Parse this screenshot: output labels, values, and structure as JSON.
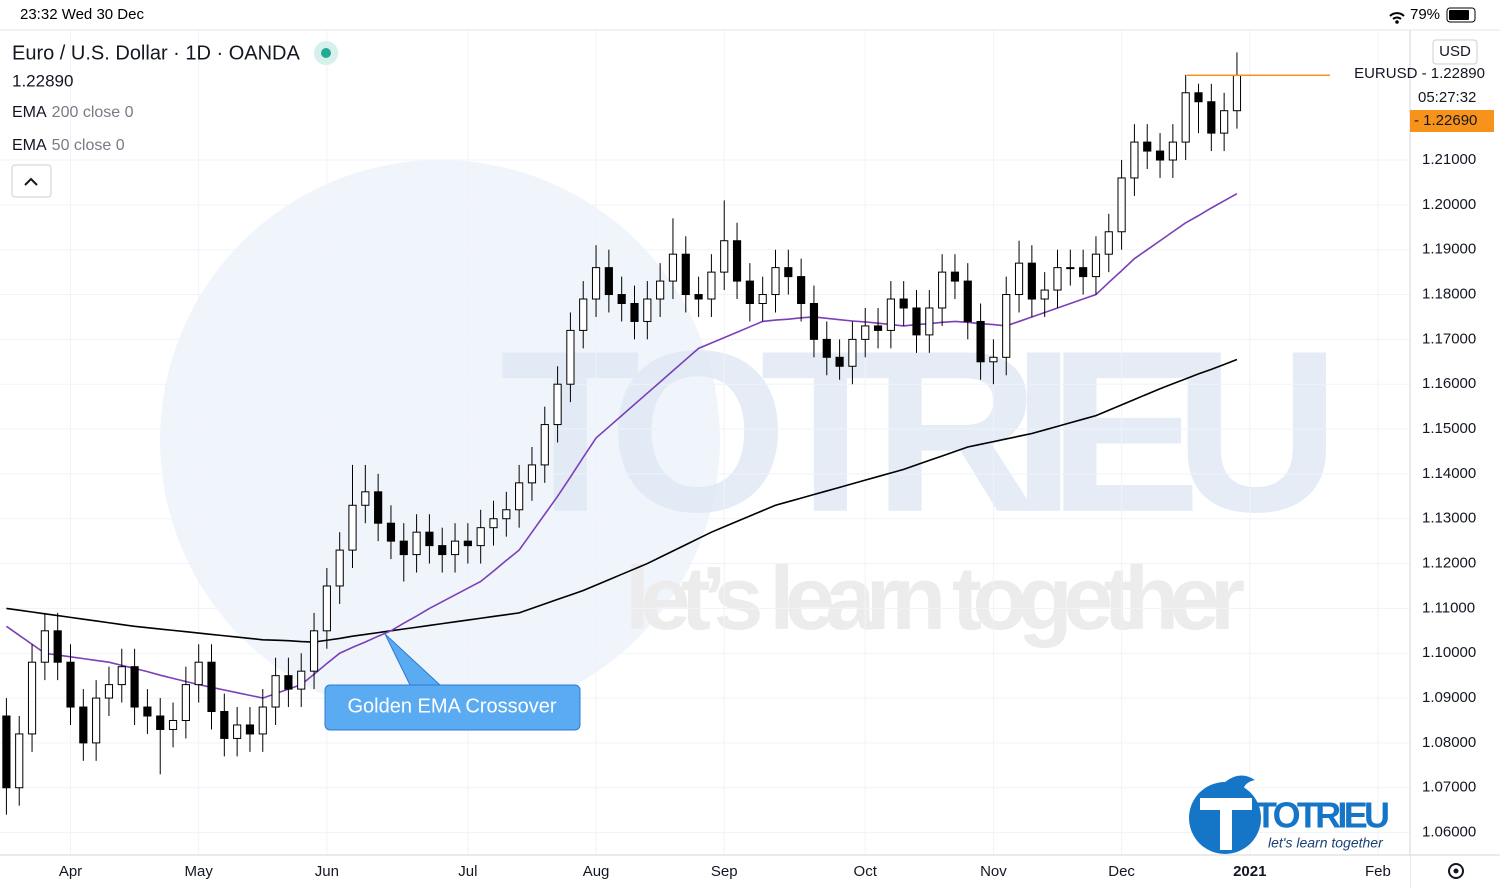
{
  "status_bar": {
    "time": "23:32  Wed 30 Dec",
    "battery": "79%"
  },
  "header": {
    "symbol": "Euro / U.S. Dollar · 1D · OANDA",
    "last_price": "1.22890"
  },
  "price_scale": {
    "currency": "USD",
    "symbol_label": "EURUSD - 1.22890",
    "countdown": "05:27:32",
    "marker_label": "- 1.22690"
  },
  "annotation": "Golden EMA Crossover",
  "watermark": {
    "brand": "TOTRIEU",
    "slogan": "let’s learn together"
  },
  "logo": {
    "brand": "TOTRIEU",
    "slogan": "let's learn together"
  },
  "chart_data": {
    "type": "candlestick",
    "categories": [
      null,
      null,
      null,
      null,
      null,
      "Apr",
      null,
      null,
      null,
      null,
      null,
      null,
      null,
      null,
      null,
      "May",
      null,
      null,
      null,
      null,
      null,
      null,
      null,
      null,
      null,
      "Jun",
      null,
      null,
      null,
      null,
      null,
      null,
      null,
      null,
      null,
      null,
      "Jul",
      null,
      null,
      null,
      null,
      null,
      null,
      null,
      null,
      null,
      "Aug",
      null,
      null,
      null,
      null,
      null,
      null,
      null,
      null,
      null,
      "Sep",
      null,
      null,
      null,
      null,
      null,
      null,
      null,
      null,
      null,
      null,
      "Oct",
      null,
      null,
      null,
      null,
      null,
      null,
      null,
      null,
      null,
      "Nov",
      null,
      null,
      null,
      null,
      null,
      null,
      null,
      null,
      null,
      "Dec",
      null,
      null,
      null,
      null,
      null,
      null,
      null,
      null,
      null,
      "2021",
      null,
      null,
      null,
      null,
      null,
      null,
      null,
      null,
      null,
      "Feb",
      null,
      null
    ],
    "open": [
      1.086,
      1.07,
      1.082,
      1.098,
      1.105,
      1.098,
      1.088,
      1.08,
      1.09,
      1.093,
      1.097,
      1.088,
      1.086,
      1.083,
      1.085,
      1.093,
      1.098,
      1.087,
      1.081,
      1.084,
      1.082,
      1.088,
      1.095,
      1.092,
      1.096,
      1.105,
      1.115,
      1.123,
      1.133,
      1.136,
      1.129,
      1.125,
      1.122,
      1.127,
      1.124,
      1.122,
      1.125,
      1.124,
      1.128,
      1.13,
      1.132,
      1.138,
      1.142,
      1.151,
      1.16,
      1.172,
      1.179,
      1.186,
      1.18,
      1.178,
      1.174,
      1.179,
      1.183,
      1.189,
      1.18,
      1.179,
      1.185,
      1.192,
      1.183,
      1.178,
      1.18,
      1.186,
      1.184,
      1.178,
      1.17,
      1.166,
      1.164,
      1.17,
      1.173,
      1.172,
      1.179,
      1.177,
      1.171,
      1.177,
      1.185,
      1.183,
      1.174,
      1.165,
      1.166,
      1.18,
      1.187,
      1.179,
      1.181,
      1.186,
      1.186,
      1.184,
      1.189,
      1.194,
      1.206,
      1.214,
      1.212,
      1.21,
      1.214,
      1.225,
      1.223,
      1.216,
      1.221,
      null,
      null,
      null,
      null,
      null,
      null,
      null,
      null,
      null,
      null,
      null,
      null,
      null
    ],
    "high": [
      1.09,
      1.086,
      1.102,
      1.109,
      1.109,
      1.102,
      1.092,
      1.094,
      1.097,
      1.101,
      1.101,
      1.092,
      1.09,
      1.089,
      1.097,
      1.102,
      1.102,
      1.091,
      1.088,
      1.088,
      1.092,
      1.099,
      1.099,
      1.1,
      1.109,
      1.119,
      1.127,
      1.142,
      1.142,
      1.14,
      1.133,
      1.129,
      1.131,
      1.131,
      1.128,
      1.129,
      1.129,
      1.132,
      1.134,
      1.136,
      1.142,
      1.146,
      1.155,
      1.164,
      1.176,
      1.183,
      1.191,
      1.19,
      1.184,
      1.182,
      1.183,
      1.187,
      1.197,
      1.193,
      1.184,
      1.189,
      1.201,
      1.196,
      1.187,
      1.184,
      1.19,
      1.19,
      1.188,
      1.182,
      1.174,
      1.17,
      1.174,
      1.177,
      1.177,
      1.183,
      1.183,
      1.181,
      1.181,
      1.189,
      1.189,
      1.187,
      1.178,
      1.17,
      1.184,
      1.192,
      1.191,
      1.185,
      1.19,
      1.19,
      1.19,
      1.193,
      1.198,
      1.21,
      1.218,
      1.218,
      1.216,
      1.218,
      1.229,
      1.227,
      1.227,
      1.225,
      1.234,
      null,
      null,
      null,
      null,
      null,
      null,
      null,
      null,
      null,
      null,
      null,
      null,
      null
    ],
    "low": [
      1.064,
      1.066,
      1.078,
      1.094,
      1.094,
      1.084,
      1.076,
      1.076,
      1.086,
      1.089,
      1.084,
      1.082,
      1.073,
      1.079,
      1.081,
      1.089,
      1.083,
      1.077,
      1.077,
      1.078,
      1.078,
      1.084,
      1.088,
      1.088,
      1.092,
      1.101,
      1.111,
      1.119,
      1.129,
      1.125,
      1.121,
      1.116,
      1.118,
      1.12,
      1.118,
      1.118,
      1.12,
      1.12,
      1.124,
      1.126,
      1.128,
      1.134,
      1.138,
      1.147,
      1.156,
      1.168,
      1.175,
      1.176,
      1.174,
      1.17,
      1.17,
      1.175,
      1.179,
      1.176,
      1.175,
      1.175,
      1.181,
      1.179,
      1.174,
      1.174,
      1.176,
      1.18,
      1.174,
      1.166,
      1.162,
      1.161,
      1.16,
      1.166,
      1.168,
      1.168,
      1.173,
      1.167,
      1.167,
      1.173,
      1.179,
      1.17,
      1.161,
      1.16,
      1.162,
      1.176,
      1.175,
      1.175,
      1.177,
      1.182,
      1.18,
      1.18,
      1.185,
      1.19,
      1.202,
      1.208,
      1.206,
      1.206,
      1.21,
      1.216,
      1.212,
      1.212,
      1.217,
      null,
      null,
      null,
      null,
      null,
      null,
      null,
      null,
      null,
      null,
      null,
      null,
      null
    ],
    "close": [
      1.07,
      1.082,
      1.098,
      1.105,
      1.098,
      1.088,
      1.08,
      1.09,
      1.093,
      1.097,
      1.088,
      1.086,
      1.083,
      1.085,
      1.093,
      1.098,
      1.087,
      1.081,
      1.084,
      1.082,
      1.088,
      1.095,
      1.092,
      1.096,
      1.105,
      1.115,
      1.123,
      1.133,
      1.136,
      1.129,
      1.125,
      1.122,
      1.127,
      1.124,
      1.122,
      1.125,
      1.124,
      1.128,
      1.13,
      1.132,
      1.138,
      1.142,
      1.151,
      1.16,
      1.172,
      1.179,
      1.186,
      1.18,
      1.178,
      1.174,
      1.179,
      1.183,
      1.189,
      1.18,
      1.179,
      1.185,
      1.192,
      1.183,
      1.178,
      1.18,
      1.186,
      1.184,
      1.178,
      1.17,
      1.166,
      1.164,
      1.17,
      1.173,
      1.172,
      1.179,
      1.177,
      1.171,
      1.177,
      1.185,
      1.183,
      1.174,
      1.165,
      1.166,
      1.18,
      1.187,
      1.179,
      1.181,
      1.186,
      1.186,
      1.184,
      1.189,
      1.194,
      1.206,
      1.214,
      1.212,
      1.21,
      1.214,
      1.225,
      1.223,
      1.216,
      1.221,
      1.2289,
      null,
      null,
      null,
      null,
      null,
      null,
      null,
      null,
      null,
      null,
      null,
      null,
      null
    ],
    "series": [
      {
        "name": "EMA",
        "params": "200 close 0",
        "color": "#000000",
        "values": [
          1.11,
          1.1096,
          1.1092,
          1.1088,
          1.1084,
          1.108,
          1.1076,
          1.1072,
          1.1068,
          1.1064,
          1.106,
          1.1057,
          1.1054,
          1.1051,
          1.1048,
          1.1045,
          1.1042,
          1.1039,
          1.1036,
          1.1033,
          1.103,
          1.1029,
          1.1028,
          1.1026,
          1.1025,
          1.1029,
          1.1033,
          1.1038,
          1.1042,
          1.1046,
          1.105,
          1.1054,
          1.1058,
          1.1062,
          1.1066,
          1.107,
          1.1074,
          1.1078,
          1.1082,
          1.1086,
          1.109,
          1.11,
          1.111,
          1.112,
          1.113,
          1.114,
          1.1152,
          1.1164,
          1.1176,
          1.1188,
          1.12,
          1.1214,
          1.1228,
          1.1242,
          1.1256,
          1.127,
          1.1282,
          1.1294,
          1.1306,
          1.1318,
          1.133,
          1.1338,
          1.1346,
          1.1354,
          1.1362,
          1.137,
          1.1378,
          1.1386,
          1.1394,
          1.1402,
          1.141,
          1.142,
          1.143,
          1.144,
          1.145,
          1.146,
          1.1466,
          1.1472,
          1.1478,
          1.1484,
          1.149,
          1.1498,
          1.1506,
          1.1514,
          1.1522,
          1.153,
          1.1542,
          1.1554,
          1.1566,
          1.1578,
          1.159,
          1.1601,
          1.1612,
          1.1623,
          1.1633,
          1.1644,
          1.1655,
          null,
          null,
          null,
          null,
          null,
          null,
          null,
          null,
          null,
          null,
          null,
          null,
          null
        ]
      },
      {
        "name": "EMA",
        "params": "50 close 0",
        "color": "#7b3fb8",
        "values": [
          1.106,
          1.104,
          1.102,
          1.1,
          1.0996,
          1.0992,
          1.0988,
          1.0984,
          1.098,
          1.0973,
          1.0966,
          1.0959,
          1.0951,
          1.0944,
          1.0937,
          1.093,
          1.0924,
          1.0918,
          1.0912,
          1.0906,
          1.09,
          1.091,
          1.092,
          1.093,
          1.0953,
          1.0977,
          1.1,
          1.1013,
          1.1025,
          1.1038,
          1.105,
          1.1067,
          1.1083,
          1.11,
          1.1115,
          1.113,
          1.1145,
          1.116,
          1.1183,
          1.1207,
          1.123,
          1.127,
          1.131,
          1.135,
          1.1393,
          1.1437,
          1.148,
          1.1505,
          1.153,
          1.1555,
          1.158,
          1.1605,
          1.163,
          1.1655,
          1.168,
          1.1692,
          1.1704,
          1.1716,
          1.1728,
          1.174,
          1.1743,
          1.1745,
          1.1748,
          1.175,
          1.1747,
          1.1744,
          1.1741,
          1.1739,
          1.1736,
          1.1733,
          1.173,
          1.1733,
          1.1735,
          1.1738,
          1.174,
          1.1738,
          1.1735,
          1.1733,
          1.173,
          1.174,
          1.175,
          1.176,
          1.177,
          1.178,
          1.179,
          1.18,
          1.1827,
          1.1853,
          1.188,
          1.19,
          1.192,
          1.194,
          1.196,
          1.1976,
          1.1993,
          1.2009,
          1.2025,
          null,
          null,
          null,
          null,
          null,
          null,
          null,
          null,
          null,
          null,
          null,
          null,
          null
        ]
      }
    ],
    "up_color": "#ffffff",
    "down_color": "#000000",
    "last_line_color": "#f7931a",
    "ylim": [
      1.055,
      1.239
    ],
    "yticks": [
      {
        "value": 1.06,
        "label": "1.06000"
      },
      {
        "value": 1.07,
        "label": "1.07000"
      },
      {
        "value": 1.08,
        "label": "1.08000"
      },
      {
        "value": 1.09,
        "label": "1.09000"
      },
      {
        "value": 1.1,
        "label": "1.10000"
      },
      {
        "value": 1.11,
        "label": "1.11000"
      },
      {
        "value": 1.12,
        "label": "1.12000"
      },
      {
        "value": 1.13,
        "label": "1.13000"
      },
      {
        "value": 1.14,
        "label": "1.14000"
      },
      {
        "value": 1.15,
        "label": "1.15000"
      },
      {
        "value": 1.16,
        "label": "1.16000"
      },
      {
        "value": 1.17,
        "label": "1.17000"
      },
      {
        "value": 1.18,
        "label": "1.18000"
      },
      {
        "value": 1.19,
        "label": "1.19000"
      },
      {
        "value": 1.2,
        "label": "1.20000"
      },
      {
        "value": 1.21,
        "label": "1.21000"
      }
    ],
    "grid": true
  }
}
